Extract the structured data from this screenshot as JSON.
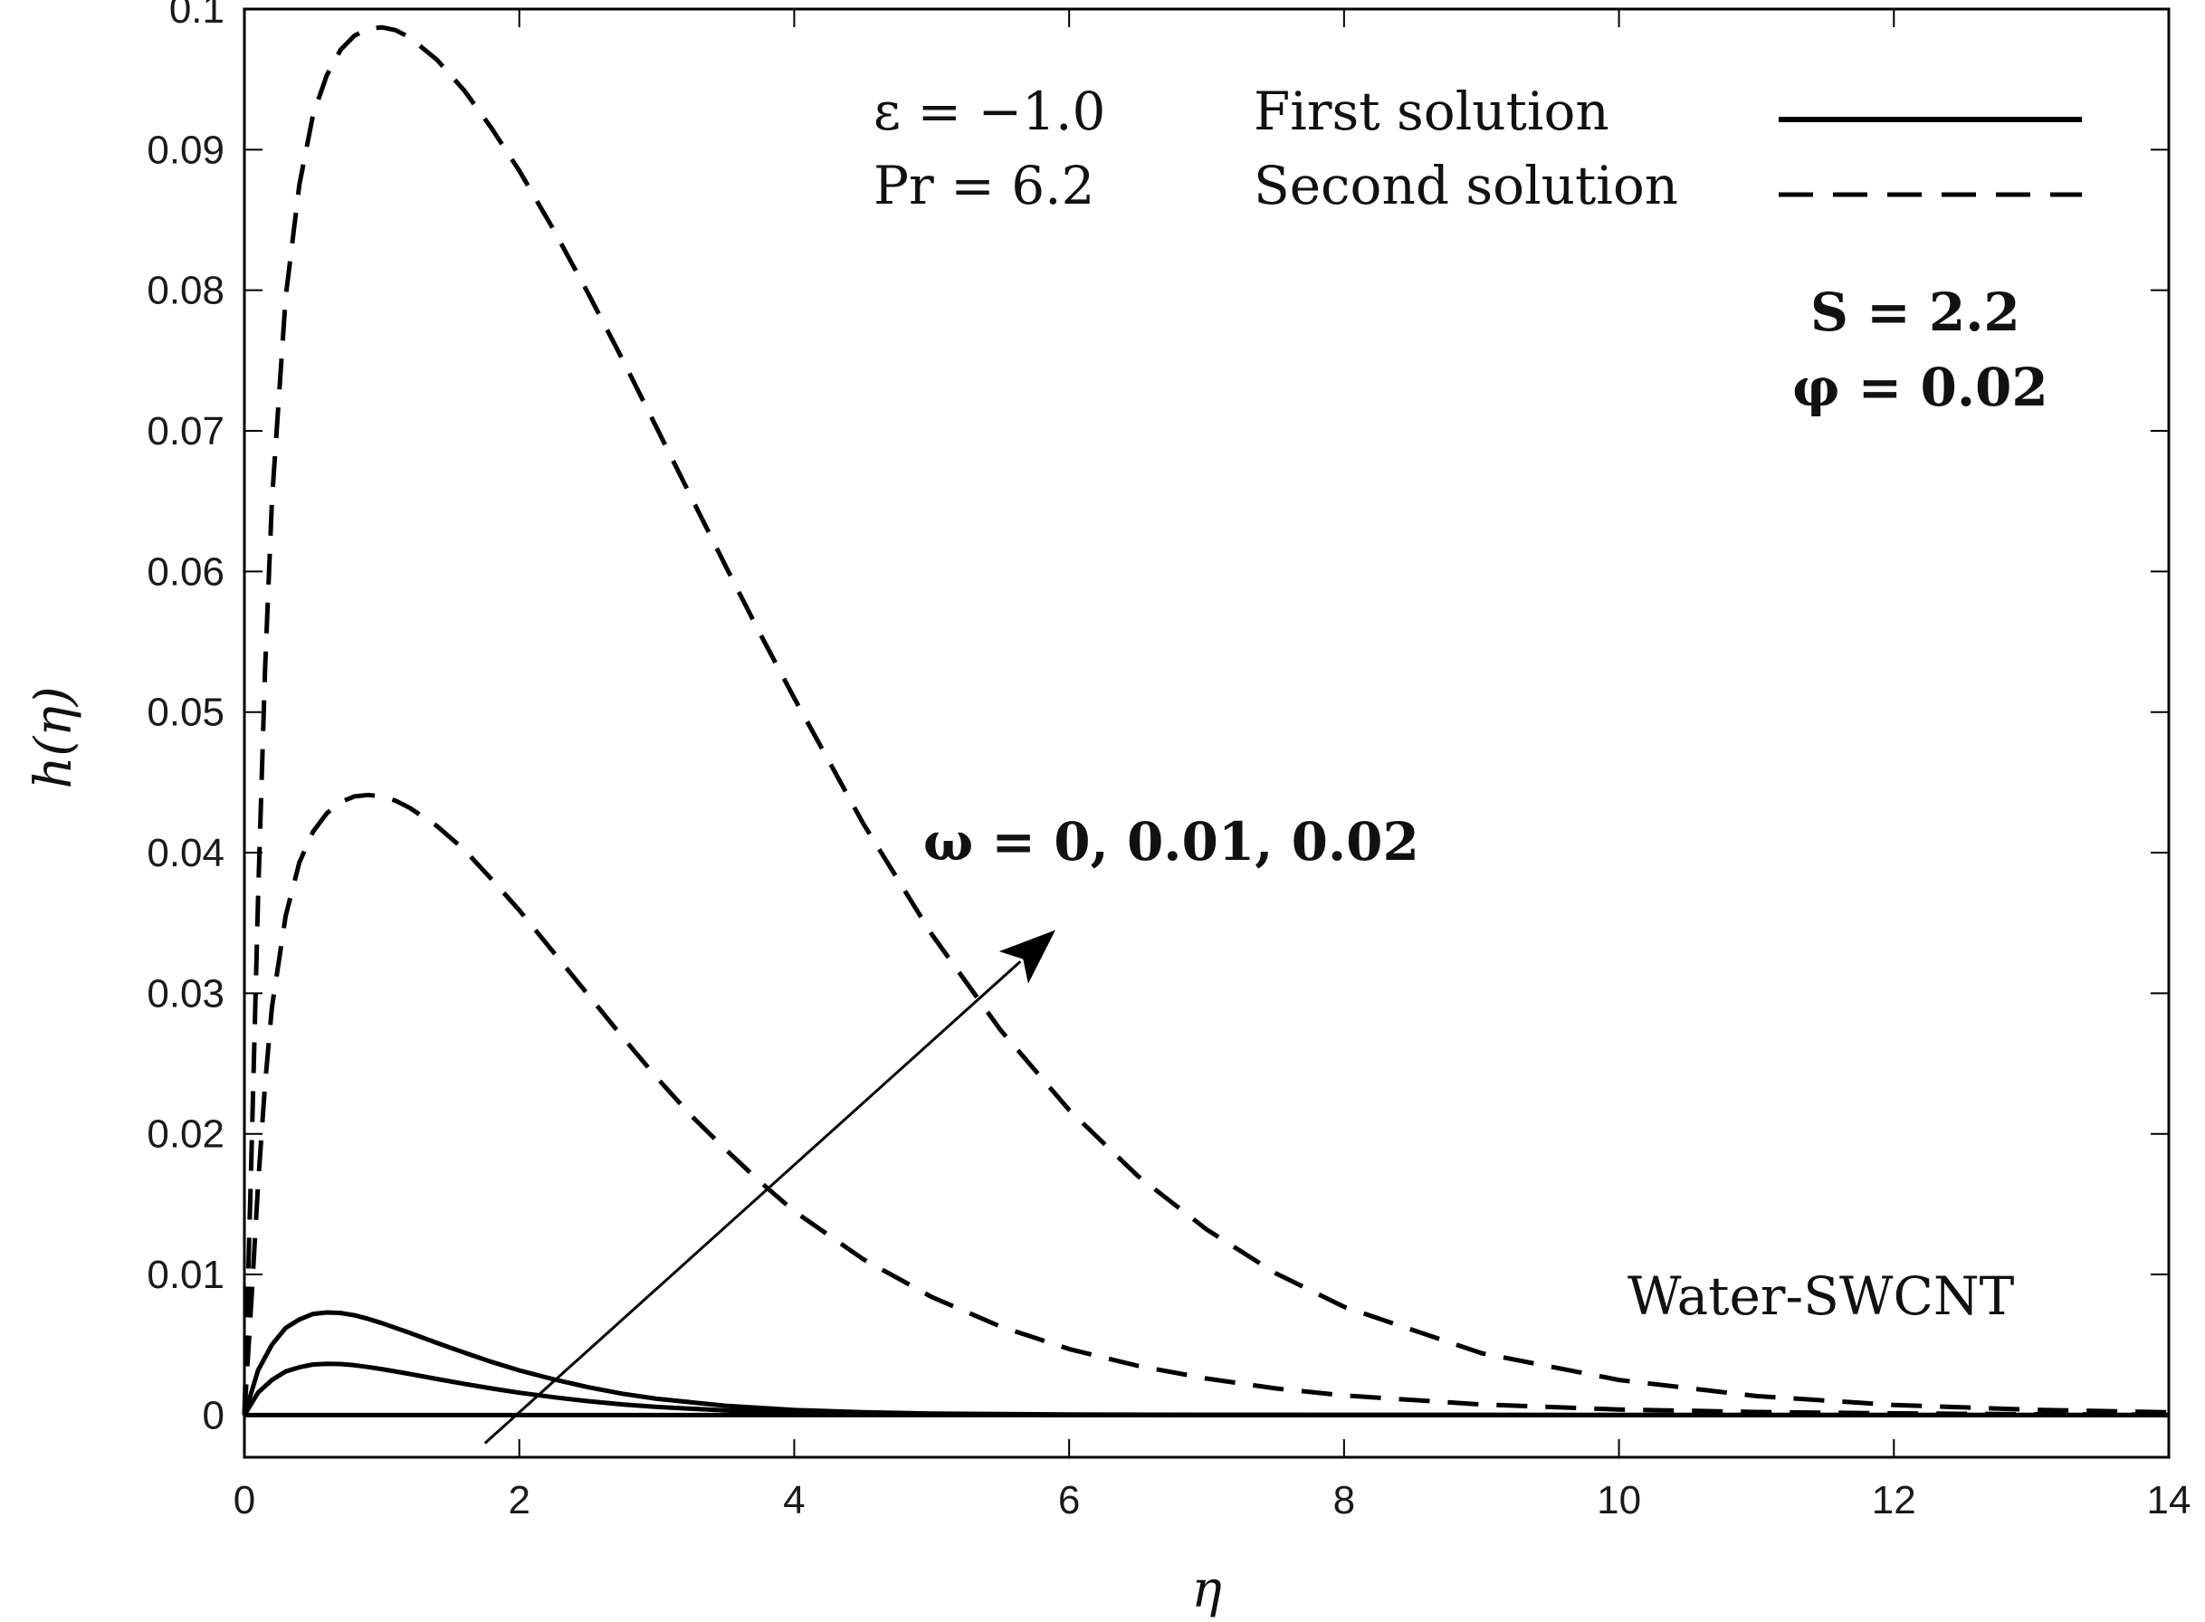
{
  "chart_data": {
    "type": "line",
    "title": "",
    "xlabel": "η",
    "ylabel": "h(η)",
    "xlim": [
      0,
      14
    ],
    "ylim": [
      -0.003,
      0.1
    ],
    "x_ticks": [
      0,
      2,
      4,
      6,
      8,
      10,
      12,
      14
    ],
    "y_ticks": [
      0,
      0.01,
      0.02,
      0.03,
      0.04,
      0.05,
      0.06,
      0.07,
      0.08,
      0.09,
      0.1
    ],
    "x_tick_labels": [
      "0",
      "2",
      "4",
      "6",
      "8",
      "10",
      "12",
      "14"
    ],
    "y_tick_labels": [
      "0",
      "0.01",
      "0.02",
      "0.03",
      "0.04",
      "0.05",
      "0.06",
      "0.07",
      "0.08",
      "0.09",
      "0.1"
    ],
    "grid": false,
    "legend": {
      "placement": "top-right",
      "entries": [
        {
          "label": "First solution",
          "style": "solid"
        },
        {
          "label": "Second solution",
          "style": "dashed"
        }
      ]
    },
    "annotations": {
      "epsilon": "ε = −1.0",
      "prandtl": "Pr = 6.2",
      "s_param": "S = 2.2",
      "phi_param": "φ = 0.02",
      "omega": "ω = 0, 0.01, 0.02",
      "fluid": "Water-SWCNT"
    },
    "arrow": {
      "from": [
        1.75,
        -0.002
      ],
      "to": [
        5.9,
        0.0345
      ]
    },
    "series": [
      {
        "name": "First solution, ω = 0",
        "style": "solid",
        "x": [
          0,
          2,
          4,
          6,
          8,
          10,
          12,
          14
        ],
        "y": [
          0,
          0,
          0,
          0,
          0,
          0,
          0,
          0
        ]
      },
      {
        "name": "First solution, ω = 0.01",
        "style": "solid",
        "x": [
          0,
          0.1,
          0.2,
          0.3,
          0.4,
          0.5,
          0.6,
          0.7,
          0.8,
          0.9,
          1.0,
          1.2,
          1.4,
          1.6,
          1.8,
          2.0,
          2.25,
          2.5,
          2.75,
          3.0,
          3.5,
          4.0,
          4.5,
          5.0,
          6.0,
          7.0,
          8.0,
          10.0,
          12.0,
          14.0
        ],
        "y": [
          0,
          0.0016,
          0.0025,
          0.0031,
          0.0034,
          0.0036,
          0.00365,
          0.00363,
          0.00355,
          0.00342,
          0.00327,
          0.00293,
          0.00257,
          0.00222,
          0.00189,
          0.00159,
          0.00127,
          0.00099,
          0.00076,
          0.00058,
          0.00033,
          0.00018,
          0.0001,
          5e-05,
          2e-05,
          1e-05,
          0,
          0,
          0,
          0
        ]
      },
      {
        "name": "First solution, ω = 0.02",
        "style": "solid",
        "x": [
          0,
          0.1,
          0.2,
          0.3,
          0.4,
          0.5,
          0.6,
          0.7,
          0.8,
          0.9,
          1.0,
          1.2,
          1.4,
          1.6,
          1.8,
          2.0,
          2.25,
          2.5,
          2.75,
          3.0,
          3.5,
          4.0,
          4.5,
          5.0,
          6.0,
          7.0,
          8.0,
          10.0,
          12.0,
          14.0
        ],
        "y": [
          0,
          0.0032,
          0.005,
          0.0062,
          0.0068,
          0.0072,
          0.0073,
          0.00726,
          0.0071,
          0.00684,
          0.00654,
          0.00586,
          0.00514,
          0.00444,
          0.00378,
          0.00318,
          0.00254,
          0.00198,
          0.00152,
          0.00116,
          0.00066,
          0.00036,
          0.0002,
          0.0001,
          4e-05,
          2e-05,
          1e-05,
          0,
          0,
          0
        ]
      },
      {
        "name": "Second solution, ω = 0.01",
        "style": "dashed",
        "x": [
          0,
          0.05,
          0.1,
          0.15,
          0.2,
          0.3,
          0.4,
          0.5,
          0.6,
          0.7,
          0.8,
          0.9,
          1.0,
          1.1,
          1.2,
          1.4,
          1.6,
          1.8,
          2.0,
          2.25,
          2.5,
          2.75,
          3.0,
          3.25,
          3.5,
          3.75,
          4.0,
          4.5,
          5.0,
          5.5,
          6.0,
          6.5,
          7.0,
          7.5,
          8.0,
          9.0,
          10.0,
          11.0,
          12.0,
          13.0,
          14.0
        ],
        "y": [
          0,
          0.008,
          0.0165,
          0.0235,
          0.029,
          0.0355,
          0.0393,
          0.0415,
          0.0428,
          0.0436,
          0.044,
          0.0441,
          0.044,
          0.0437,
          0.0432,
          0.0419,
          0.0402,
          0.0381,
          0.0359,
          0.0329,
          0.0299,
          0.0269,
          0.024,
          0.0213,
          0.0189,
          0.0166,
          0.0145,
          0.0111,
          0.0084,
          0.0063,
          0.0047,
          0.0035,
          0.0026,
          0.0019,
          0.0014,
          0.00075,
          0.0004,
          0.00022,
          0.00012,
          6e-05,
          3e-05
        ]
      },
      {
        "name": "Second solution, ω = 0.02",
        "style": "dashed",
        "x": [
          0,
          0.05,
          0.1,
          0.15,
          0.2,
          0.3,
          0.4,
          0.5,
          0.6,
          0.7,
          0.8,
          0.9,
          1.0,
          1.1,
          1.2,
          1.4,
          1.6,
          1.8,
          2.0,
          2.25,
          2.5,
          2.75,
          3.0,
          3.25,
          3.5,
          3.75,
          4.0,
          4.5,
          5.0,
          5.5,
          6.0,
          6.5,
          7.0,
          7.5,
          8.0,
          9.0,
          10.0,
          11.0,
          12.0,
          13.0,
          14.0
        ],
        "y": [
          0,
          0.018,
          0.037,
          0.053,
          0.065,
          0.0795,
          0.0875,
          0.0925,
          0.0953,
          0.0971,
          0.0981,
          0.0986,
          0.0987,
          0.0985,
          0.098,
          0.0964,
          0.0942,
          0.0915,
          0.0885,
          0.0843,
          0.0798,
          0.0751,
          0.0702,
          0.0653,
          0.0604,
          0.0556,
          0.051,
          0.0421,
          0.0342,
          0.0274,
          0.0217,
          0.017,
          0.0132,
          0.0101,
          0.0077,
          0.0044,
          0.0025,
          0.00135,
          0.00072,
          0.00038,
          0.0002
        ]
      }
    ]
  }
}
